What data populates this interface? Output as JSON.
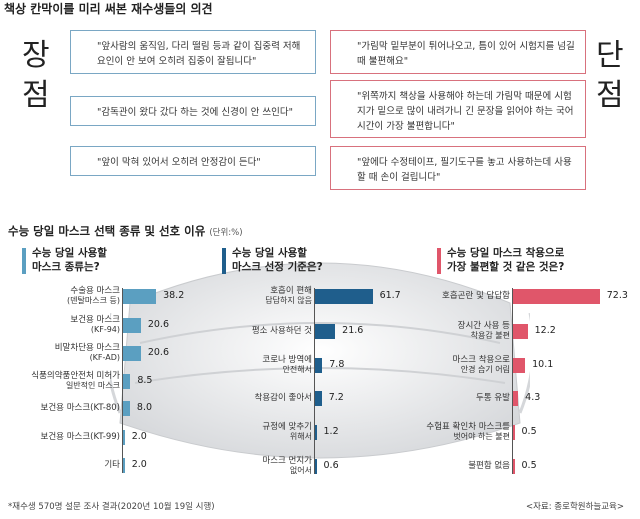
{
  "title": "책상 칸막이를 미리 써본 재수생들의 의견",
  "pros": {
    "label_chars": [
      "장",
      "점"
    ],
    "items": [
      "\"앞사람의 움직임, 다리 떨림 등과 같이 집중력 저해 요인이 안 보여 오히려 집중이 잘됩니다\"",
      "\"감독관이 왔다 갔다 하는 것에 신경이 안 쓰인다\"",
      "\"앞이 막혀 있어서 오히려 안정감이 든다\""
    ]
  },
  "cons": {
    "label_chars": [
      "단",
      "점"
    ],
    "items": [
      "\"가림막 밑부분이 튀어나오고, 틈이 있어 시험지를 넘길 때 불편해요\"",
      "\"위쪽까지 책상을 사용해야 하는데 가림막 때문에 시험지가 밑으로 많이 내려가니 긴 문장을 읽어야 하는 국어시간이 가장 불편합니다\"",
      "\"앞에다 수정테이프, 필기도구를 놓고 사용하는데 사용할 때 손이 걸립니다\""
    ]
  },
  "section_title": "수능 당일 마스크 선택 종류 및 선호 이유",
  "unit": "(단위:%)",
  "chart_data": [
    {
      "type": "bar",
      "orientation": "horizontal",
      "title": "수능 당일 사용할 마스크 종류는?",
      "title_lines": [
        "수능 당일 사용할",
        "마스크 종류는?"
      ],
      "color": "#5b9fc1",
      "categories": [
        [
          "수술용 마스크",
          "(덴탈마스크 등)"
        ],
        [
          "보건용 마스크",
          "(KF-94)"
        ],
        [
          "비말차단용 마스크",
          "(KF-AD)"
        ],
        [
          "식품의약품안전처 미허가",
          "일반적인 마스크"
        ],
        [
          "보건용 마스크(KT-80)"
        ],
        [
          "보건용 마스크(KT-99)"
        ],
        [
          "기타"
        ]
      ],
      "values": [
        38.2,
        20.6,
        20.6,
        8.5,
        8.0,
        2.0,
        2.0
      ],
      "value_labels": [
        "38.2",
        "20.6",
        "20.6",
        "8.5",
        "8.0",
        "2.0",
        "2.0"
      ]
    },
    {
      "type": "bar",
      "orientation": "horizontal",
      "title": "수능 당일 사용할 마스크 선정 기준은?",
      "title_lines": [
        "수능 당일 사용할",
        "마스크 선정 기준은?"
      ],
      "color": "#1f5e8c",
      "categories": [
        [
          "호흡이 편해",
          "답답하지 않음"
        ],
        [
          "평소 사용하던 것"
        ],
        [
          "코로나 방역에",
          "안전해서"
        ],
        [
          "착용감이 좋아서"
        ],
        [
          "규정에 맞추기",
          "위해서"
        ],
        [
          "마스크 먼지가",
          "없어서"
        ]
      ],
      "values": [
        61.7,
        21.6,
        7.8,
        7.2,
        1.2,
        0.6
      ],
      "value_labels": [
        "61.7",
        "21.6",
        "7.8",
        "7.2",
        "1.2",
        "0.6"
      ]
    },
    {
      "type": "bar",
      "orientation": "horizontal",
      "title": "수능 당일 마스크 착용으로 가장 불편할 것 같은 것은?",
      "title_lines": [
        "수능 당일 마스크 착용으로",
        "가장 불편할 것 같은 것은?"
      ],
      "color": "#e0566a",
      "categories": [
        [
          "호흡곤란 및 답답함"
        ],
        [
          "장시간 사용 등",
          "착용감 불편"
        ],
        [
          "마스크 착용으로",
          "안경 습기 어림"
        ],
        [
          "두통 유발"
        ],
        [
          "수험표 확인차 마스크를",
          "벗어야 하는 불편"
        ],
        [
          "불편함 없음"
        ]
      ],
      "values": [
        72.3,
        12.2,
        10.1,
        4.3,
        0.5,
        0.5
      ],
      "value_labels": [
        "72.3",
        "12.2",
        "10.1",
        "4.3",
        "0.5",
        "0.5"
      ]
    }
  ],
  "footnote": "*재수생 570명 설문 조사 결과(2020년 10월 19일 시행)",
  "source": "<자료: 종로학원하늘교육>"
}
